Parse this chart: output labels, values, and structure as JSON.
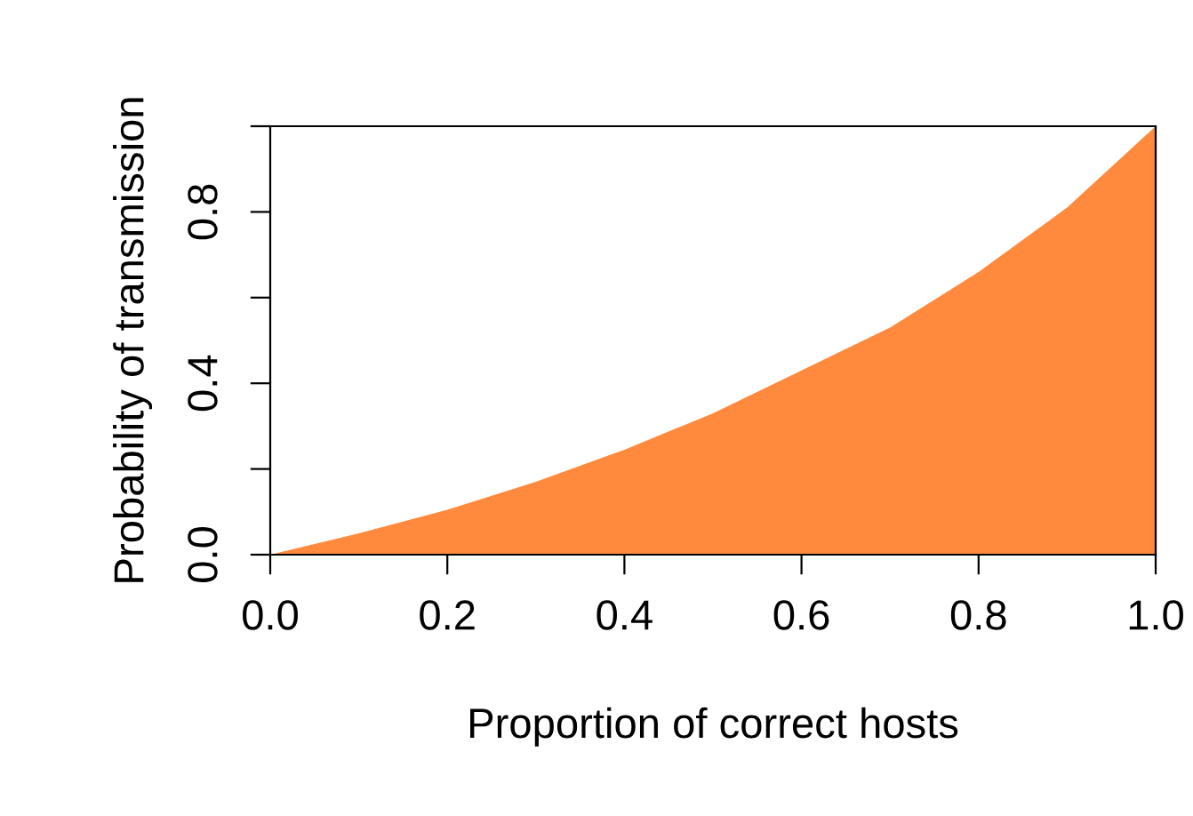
{
  "chart_data": {
    "type": "area",
    "xlabel": "Proportion of correct hosts",
    "ylabel": "Probability of transmission",
    "x": [
      0,
      0.1,
      0.2,
      0.3,
      0.4,
      0.5,
      0.6,
      0.7,
      0.8,
      0.9,
      0.95,
      1.0
    ],
    "series": [
      {
        "color": "#ff8a3d",
        "values": [
          0,
          0.05,
          0.105,
          0.17,
          0.245,
          0.33,
          0.43,
          0.53,
          0.66,
          0.81,
          0.905,
          1.0
        ]
      }
    ],
    "xlim": [
      0,
      1
    ],
    "ylim": [
      0,
      1
    ],
    "xticks": [
      {
        "value": 0,
        "label": "0.0"
      },
      {
        "value": 0.2,
        "label": "0.2"
      },
      {
        "value": 0.4,
        "label": "0.4"
      },
      {
        "value": 0.6,
        "label": "0.6"
      },
      {
        "value": 0.8,
        "label": "0.8"
      },
      {
        "value": 1.0,
        "label": "1.0"
      }
    ],
    "yticks": [
      {
        "value": 0,
        "label": "0.0"
      },
      {
        "value": 0.2,
        "label": null
      },
      {
        "value": 0.4,
        "label": "0.4"
      },
      {
        "value": 0.6,
        "label": null
      },
      {
        "value": 0.8,
        "label": "0.8"
      },
      {
        "value": 1.0,
        "label": null
      }
    ],
    "grid": false,
    "legend": false
  }
}
